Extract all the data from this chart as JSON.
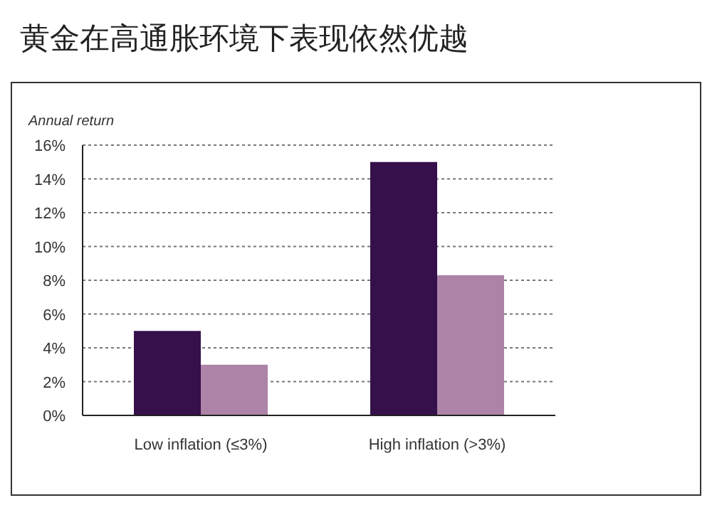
{
  "chart_data": {
    "type": "bar",
    "title": "黄金在高通胀环境下表现依然优越",
    "ylabel": "Annual return",
    "categories": [
      "Low inflation (≤3%)",
      "High inflation (>3%)"
    ],
    "series": [
      {
        "color": "#36104a",
        "values": [
          5.0,
          15.0
        ]
      },
      {
        "color": "#ad83a8",
        "values": [
          3.0,
          8.3
        ]
      }
    ],
    "ylim": [
      0,
      16
    ],
    "yticks": [
      {
        "value": 0,
        "label": "0%"
      },
      {
        "value": 2,
        "label": "2%"
      },
      {
        "value": 4,
        "label": "4%"
      },
      {
        "value": 6,
        "label": "6%"
      },
      {
        "value": 8,
        "label": "8%"
      },
      {
        "value": 10,
        "label": "10%"
      },
      {
        "value": 12,
        "label": "12%"
      },
      {
        "value": 14,
        "label": "14%"
      },
      {
        "value": 16,
        "label": "16%"
      }
    ],
    "grid": "y"
  }
}
